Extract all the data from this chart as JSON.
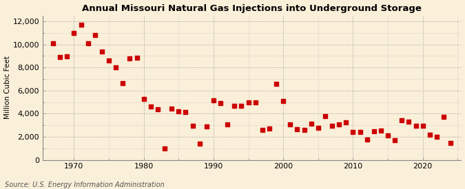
{
  "title": "Annual Missouri Natural Gas Injections into Underground Storage",
  "ylabel": "Million Cubic Feet",
  "source": "Source: U.S. Energy Information Administration",
  "background_color": "#faefd9",
  "plot_bg_color": "#faefd9",
  "marker_color": "#cc0000",
  "marker_size": 18,
  "xlim": [
    1965.5,
    2025.5
  ],
  "ylim": [
    0,
    12500
  ],
  "yticks": [
    0,
    2000,
    4000,
    6000,
    8000,
    10000,
    12000
  ],
  "ytick_labels": [
    "0",
    "2,000",
    "4,000",
    "6,000",
    "8,000",
    "10,000",
    "12,000"
  ],
  "xticks": [
    1970,
    1980,
    1990,
    2000,
    2010,
    2020
  ],
  "data": {
    "1967": 10100,
    "1968": 8900,
    "1969": 8950,
    "1970": 11000,
    "1971": 11700,
    "1972": 10100,
    "1973": 10800,
    "1974": 9400,
    "1975": 8600,
    "1976": 8000,
    "1977": 6650,
    "1978": 8800,
    "1979": 8850,
    "1980": 5250,
    "1981": 4600,
    "1982": 4350,
    "1983": 1000,
    "1984": 4450,
    "1985": 4200,
    "1986": 4150,
    "1987": 2950,
    "1988": 1400,
    "1989": 2900,
    "1990": 5150,
    "1991": 4900,
    "1992": 3050,
    "1993": 4700,
    "1994": 4700,
    "1995": 5000,
    "1996": 4950,
    "1997": 2600,
    "1998": 2700,
    "1999": 6550,
    "2000": 5100,
    "2001": 3050,
    "2002": 2650,
    "2003": 2600,
    "2004": 3100,
    "2005": 2750,
    "2006": 3800,
    "2007": 2950,
    "2008": 3050,
    "2009": 3250,
    "2010": 2400,
    "2011": 2400,
    "2012": 1750,
    "2013": 2500,
    "2014": 2550,
    "2015": 2100,
    "2016": 1700,
    "2017": 3400,
    "2018": 3300,
    "2019": 2950,
    "2020": 2950,
    "2021": 2200,
    "2022": 2000,
    "2023": 3750,
    "2024": 1450
  }
}
